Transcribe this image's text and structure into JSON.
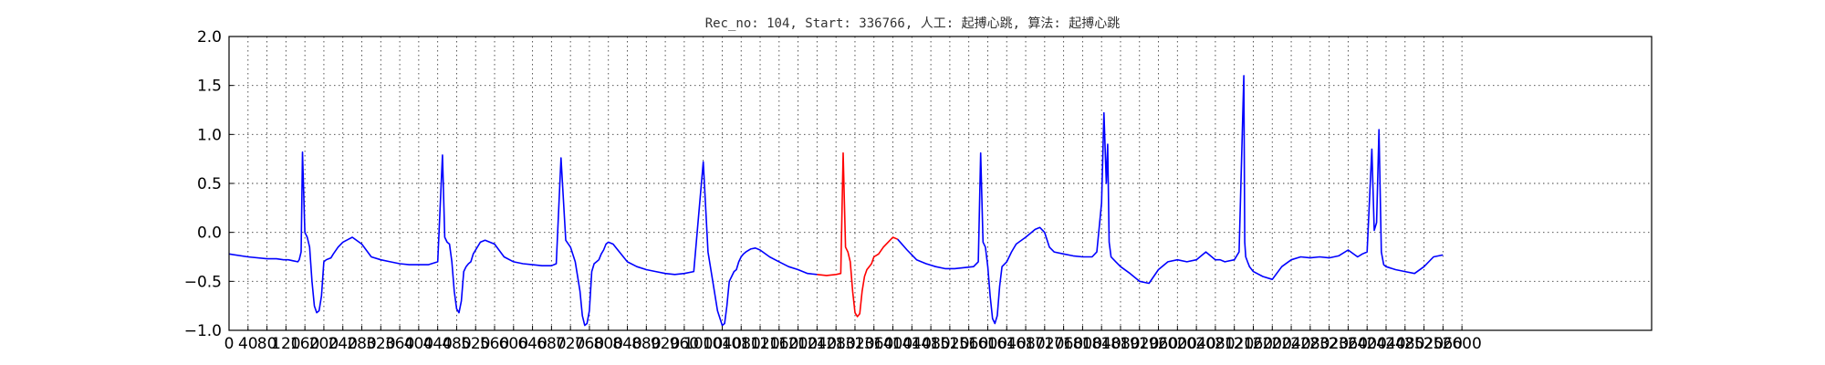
{
  "chart_data": {
    "type": "line",
    "title": "Rec_no: 104, Start: 336766, 人工: 起搏心跳, 算法: 起搏心跳",
    "xlabel": "",
    "ylabel": "",
    "xlim": [
      0,
      3000
    ],
    "ylim": [
      -1.0,
      2.0
    ],
    "grid": true,
    "x_ticks": [
      0,
      40,
      80,
      120,
      160,
      200,
      240,
      280,
      320,
      360,
      400,
      440,
      480,
      520,
      560,
      600,
      640,
      680,
      720,
      760,
      800,
      840,
      880,
      920,
      960,
      1000,
      1040,
      1080,
      1120,
      1160,
      1200,
      1240,
      1280,
      1320,
      1360,
      1400,
      1440,
      1480,
      1520,
      1560,
      1600,
      1640,
      1680,
      1720,
      1760,
      1800,
      1840,
      1880,
      1920,
      1960,
      2000,
      2040,
      2080,
      2120,
      2160,
      2200,
      2240,
      2280,
      2320,
      2360,
      2400,
      2440,
      2480,
      2520,
      2560,
      2600
    ],
    "y_ticks": [
      -1.0,
      -0.5,
      0.0,
      0.5,
      1.0,
      1.5,
      2.0
    ],
    "y_tick_labels": [
      "−1.0",
      "−0.5",
      "0.0",
      "0.5",
      "1.0",
      "1.5",
      "2.0"
    ],
    "series": [
      {
        "color": "#0000ff",
        "x": [
          0,
          40,
          80,
          100,
          115,
          125,
          135,
          145,
          148,
          152,
          155,
          160,
          165,
          170,
          175,
          180,
          185,
          190,
          195,
          200,
          205,
          210,
          215,
          220,
          230,
          240,
          260,
          280,
          300,
          320,
          340,
          360,
          380,
          400,
          420,
          440,
          450,
          455,
          460,
          465,
          470,
          475,
          480,
          485,
          490,
          495,
          500,
          505,
          510,
          515,
          520,
          530,
          540,
          560,
          580,
          600,
          620,
          640,
          660,
          680,
          690,
          700,
          710,
          720,
          730,
          740,
          745,
          750,
          755,
          760,
          765,
          770,
          775,
          780,
          785,
          790,
          795,
          800,
          810,
          820,
          840,
          860,
          880,
          900,
          920,
          940,
          960,
          980,
          1000,
          1010,
          1020,
          1030,
          1040,
          1045,
          1050,
          1055,
          1060,
          1065,
          1070,
          1075,
          1080,
          1085,
          1090,
          1100,
          1110,
          1120,
          1140,
          1160,
          1180,
          1200,
          1220,
          1240
        ],
        "y": [
          -0.22,
          -0.25,
          -0.27,
          -0.27,
          -0.28,
          -0.28,
          -0.29,
          -0.3,
          -0.28,
          -0.2,
          0.82,
          0.0,
          -0.05,
          -0.15,
          -0.5,
          -0.75,
          -0.82,
          -0.8,
          -0.65,
          -0.3,
          -0.28,
          -0.27,
          -0.26,
          -0.22,
          -0.15,
          -0.1,
          -0.05,
          -0.12,
          -0.25,
          -0.28,
          -0.3,
          -0.32,
          -0.33,
          -0.33,
          -0.33,
          -0.3,
          0.79,
          -0.05,
          -0.1,
          -0.12,
          -0.3,
          -0.6,
          -0.78,
          -0.82,
          -0.7,
          -0.4,
          -0.35,
          -0.32,
          -0.3,
          -0.22,
          -0.18,
          -0.1,
          -0.08,
          -0.12,
          -0.25,
          -0.3,
          -0.32,
          -0.33,
          -0.34,
          -0.34,
          -0.32,
          0.76,
          -0.08,
          -0.15,
          -0.3,
          -0.6,
          -0.85,
          -0.95,
          -0.93,
          -0.8,
          -0.4,
          -0.32,
          -0.3,
          -0.28,
          -0.22,
          -0.18,
          -0.12,
          -0.1,
          -0.12,
          -0.18,
          -0.3,
          -0.35,
          -0.38,
          -0.4,
          -0.42,
          -0.43,
          -0.42,
          -0.4,
          0.72,
          -0.2,
          -0.5,
          -0.8,
          -0.95,
          -0.93,
          -0.75,
          -0.5,
          -0.45,
          -0.4,
          -0.38,
          -0.3,
          -0.25,
          -0.22,
          -0.2,
          -0.17,
          -0.16,
          -0.18,
          -0.25,
          -0.3,
          -0.35,
          -0.38,
          -0.42,
          -0.43
        ]
      },
      {
        "color": "#ff0000",
        "x": [
          1240,
          1260,
          1280,
          1290,
          1295,
          1300,
          1305,
          1310,
          1315,
          1320,
          1325,
          1330,
          1335,
          1340,
          1345,
          1350,
          1355,
          1360,
          1370,
          1380,
          1390,
          1400,
          1410
        ],
        "y": [
          -0.43,
          -0.44,
          -0.43,
          -0.42,
          0.81,
          -0.15,
          -0.2,
          -0.3,
          -0.6,
          -0.82,
          -0.86,
          -0.83,
          -0.6,
          -0.45,
          -0.38,
          -0.35,
          -0.32,
          -0.25,
          -0.22,
          -0.15,
          -0.1,
          -0.05,
          -0.07
        ]
      },
      {
        "color": "#0000ff",
        "x": [
          1410,
          1430,
          1450,
          1470,
          1490,
          1510,
          1530,
          1550,
          1570,
          1580,
          1585,
          1590,
          1595,
          1600,
          1605,
          1610,
          1615,
          1620,
          1625,
          1630,
          1640,
          1650,
          1660,
          1680,
          1700,
          1710,
          1720,
          1730,
          1740,
          1760,
          1780,
          1800,
          1820,
          1830,
          1840,
          1845,
          1850,
          1853,
          1856,
          1860,
          1870,
          1880,
          1900,
          1920,
          1940,
          1960,
          1980,
          2000,
          2020,
          2040,
          2060,
          2080,
          2090,
          2100,
          2120,
          2130,
          2140,
          2142,
          2144,
          2148,
          2152,
          2160,
          2180,
          2200,
          2220,
          2240,
          2260,
          2280,
          2300,
          2320,
          2340,
          2360,
          2380,
          2390,
          2400,
          2410,
          2415,
          2420,
          2425,
          2430,
          2435,
          2440,
          2460,
          2480,
          2500,
          2520,
          2540,
          2560
        ],
        "y": [
          -0.07,
          -0.18,
          -0.28,
          -0.32,
          -0.35,
          -0.37,
          -0.37,
          -0.36,
          -0.35,
          -0.3,
          0.81,
          -0.1,
          -0.15,
          -0.35,
          -0.65,
          -0.88,
          -0.93,
          -0.85,
          -0.55,
          -0.35,
          -0.3,
          -0.2,
          -0.12,
          -0.05,
          0.03,
          0.05,
          0.0,
          -0.15,
          -0.2,
          -0.22,
          -0.24,
          -0.25,
          -0.25,
          -0.2,
          0.3,
          1.22,
          0.5,
          0.9,
          -0.1,
          -0.25,
          -0.3,
          -0.35,
          -0.42,
          -0.5,
          -0.52,
          -0.38,
          -0.3,
          -0.28,
          -0.3,
          -0.28,
          -0.2,
          -0.28,
          -0.28,
          -0.3,
          -0.28,
          -0.2,
          1.6,
          -0.1,
          -0.25,
          -0.3,
          -0.35,
          -0.4,
          -0.45,
          -0.48,
          -0.35,
          -0.28,
          -0.25,
          -0.26,
          -0.25,
          -0.26,
          -0.24,
          -0.18,
          -0.25,
          -0.22,
          -0.2,
          0.85,
          0.02,
          0.1,
          1.05,
          -0.2,
          -0.33,
          -0.35,
          -0.38,
          -0.4,
          -0.42,
          -0.35,
          -0.25,
          -0.23
        ]
      }
    ]
  }
}
